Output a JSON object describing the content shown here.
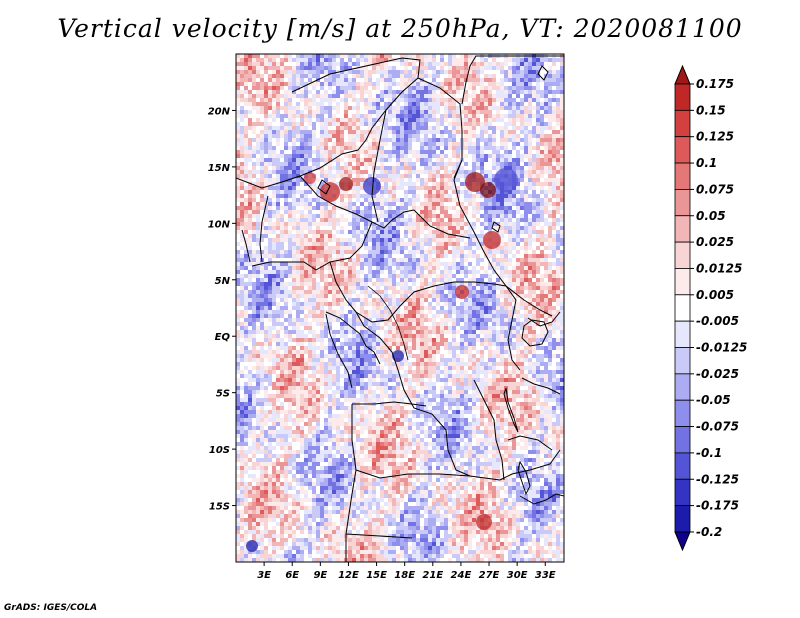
{
  "title": "Vertical velocity [m/s] at 250hPa, VT: 2020081100",
  "footer": "GrADS: IGES/COLA",
  "map": {
    "lon_range": [
      0,
      35
    ],
    "lat_range": [
      -20,
      25
    ],
    "lon_ticks": [
      "3E",
      "6E",
      "9E",
      "12E",
      "15E",
      "18E",
      "21E",
      "24E",
      "27E",
      "30E",
      "33E"
    ],
    "lon_tick_values": [
      3,
      6,
      9,
      12,
      15,
      18,
      21,
      24,
      27,
      30,
      33
    ],
    "lat_ticks": [
      "20N",
      "15N",
      "10N",
      "5N",
      "EQ",
      "5S",
      "10S",
      "15S"
    ],
    "lat_tick_values": [
      20,
      15,
      10,
      5,
      0,
      -5,
      -10,
      -15
    ],
    "field": "vertical velocity",
    "level": "250hPa"
  },
  "colorbar": {
    "labels": [
      "0.175",
      "0.15",
      "0.125",
      "0.1",
      "0.075",
      "0.05",
      "0.025",
      "0.0125",
      "0.005",
      "-0.005",
      "-0.0125",
      "-0.025",
      "-0.05",
      "-0.075",
      "-0.1",
      "-0.125",
      "-0.175",
      "-0.2"
    ],
    "colors": [
      "#a01818",
      "#c02828",
      "#d24040",
      "#de5a5a",
      "#e47878",
      "#ea9696",
      "#f2b6b6",
      "#f8d4d4",
      "#fdeaea",
      "#ffffff",
      "#e6e6fc",
      "#cacaf8",
      "#acacf2",
      "#8e8eec",
      "#7272e2",
      "#5454d6",
      "#3434c4",
      "#1c1cac",
      "#100090"
    ]
  }
}
